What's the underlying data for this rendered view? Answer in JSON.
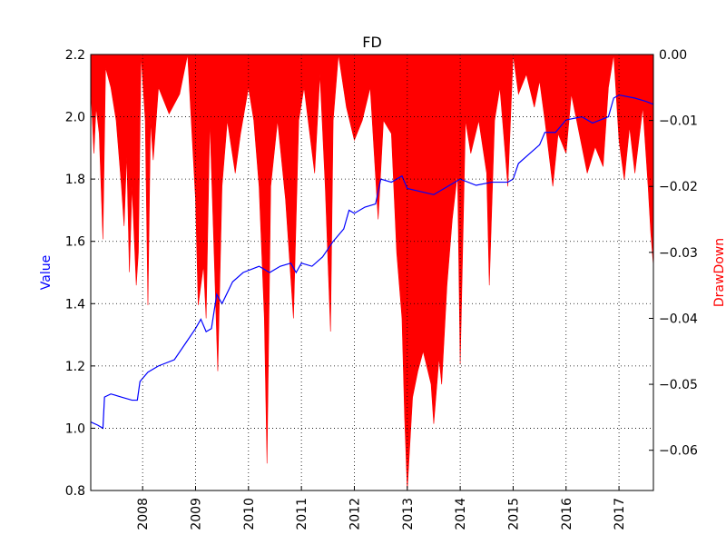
{
  "chart_data": {
    "type": "line",
    "title": "FD",
    "ylabel": "Value",
    "y2label": "DrawDown",
    "grid": true,
    "xlim": [
      2007.02,
      2017.65
    ],
    "xticks": [
      2008,
      2009,
      2010,
      2011,
      2012,
      2013,
      2014,
      2015,
      2016,
      2017
    ],
    "ylim": [
      0.8,
      2.2
    ],
    "yticks": [
      {
        "value": 0.8,
        "label": "0.8"
      },
      {
        "value": 1.0,
        "label": "1.0"
      },
      {
        "value": 1.2,
        "label": "1.2"
      },
      {
        "value": 1.4,
        "label": "1.4"
      },
      {
        "value": 1.6,
        "label": "1.6"
      },
      {
        "value": 1.8,
        "label": "1.8"
      },
      {
        "value": 2.0,
        "label": "2.0"
      },
      {
        "value": 2.2,
        "label": "2.2"
      }
    ],
    "y2lim": [
      -0.0661,
      0
    ],
    "y2ticks": [
      {
        "value": 0,
        "label": "0.00"
      },
      {
        "value": -0.01,
        "label": "−0.01"
      },
      {
        "value": -0.02,
        "label": "−0.02"
      },
      {
        "value": -0.03,
        "label": "−0.03"
      },
      {
        "value": -0.04,
        "label": "−0.04"
      },
      {
        "value": -0.05,
        "label": "−0.05"
      },
      {
        "value": -0.06,
        "label": "−0.06"
      }
    ],
    "series": [
      {
        "color": "#0000ff",
        "x": [
          2007.02,
          2007.15,
          2007.25,
          2007.28,
          2007.4,
          2007.6,
          2007.8,
          2007.9,
          2007.95,
          2008.1,
          2008.3,
          2008.6,
          2008.8,
          2009.0,
          2009.1,
          2009.2,
          2009.3,
          2009.4,
          2009.5,
          2009.7,
          2009.9,
          2010.2,
          2010.4,
          2010.6,
          2010.8,
          2010.9,
          2011.0,
          2011.2,
          2011.4,
          2011.6,
          2011.7,
          2011.8,
          2011.9,
          2012.0,
          2012.2,
          2012.4,
          2012.5,
          2012.7,
          2012.9,
          2013.0,
          2013.5,
          2014.0,
          2014.3,
          2014.6,
          2014.9,
          2015.0,
          2015.1,
          2015.3,
          2015.5,
          2015.6,
          2015.8,
          2016.0,
          2016.3,
          2016.5,
          2016.8,
          2016.9,
          2017.0,
          2017.3,
          2017.5,
          2017.65
        ],
        "values": [
          1.02,
          1.01,
          1.0,
          1.1,
          1.11,
          1.1,
          1.09,
          1.09,
          1.15,
          1.18,
          1.2,
          1.22,
          1.27,
          1.32,
          1.35,
          1.31,
          1.32,
          1.43,
          1.4,
          1.47,
          1.5,
          1.52,
          1.5,
          1.52,
          1.53,
          1.5,
          1.53,
          1.52,
          1.55,
          1.6,
          1.62,
          1.64,
          1.7,
          1.69,
          1.71,
          1.72,
          1.8,
          1.79,
          1.81,
          1.77,
          1.75,
          1.8,
          1.78,
          1.79,
          1.79,
          1.8,
          1.85,
          1.88,
          1.91,
          1.95,
          1.95,
          1.99,
          2.0,
          1.98,
          2.0,
          2.06,
          2.07,
          2.06,
          2.05,
          2.04
        ]
      },
      {
        "color": "#ff0000",
        "axis": "y2",
        "type": "area",
        "x": [
          2007.02,
          2007.08,
          2007.12,
          2007.18,
          2007.25,
          2007.3,
          2007.4,
          2007.5,
          2007.6,
          2007.65,
          2007.7,
          2007.75,
          2007.8,
          2007.88,
          2007.92,
          2007.97,
          2008.05,
          2008.1,
          2008.15,
          2008.2,
          2008.3,
          2008.5,
          2008.7,
          2008.85,
          2009.0,
          2009.05,
          2009.15,
          2009.2,
          2009.27,
          2009.35,
          2009.42,
          2009.5,
          2009.6,
          2009.75,
          2009.85,
          2010.0,
          2010.1,
          2010.2,
          2010.3,
          2010.35,
          2010.42,
          2010.55,
          2010.7,
          2010.85,
          2010.95,
          2011.05,
          2011.25,
          2011.35,
          2011.45,
          2011.55,
          2011.6,
          2011.7,
          2011.85,
          2012.0,
          2012.15,
          2012.3,
          2012.45,
          2012.55,
          2012.7,
          2012.8,
          2012.9,
          2012.95,
          2013.0,
          2013.1,
          2013.2,
          2013.3,
          2013.45,
          2013.5,
          2013.6,
          2013.65,
          2013.75,
          2013.85,
          2013.95,
          2014.0,
          2014.1,
          2014.2,
          2014.35,
          2014.5,
          2014.55,
          2014.65,
          2014.75,
          2014.9,
          2015.0,
          2015.1,
          2015.25,
          2015.4,
          2015.5,
          2015.6,
          2015.75,
          2015.85,
          2016.0,
          2016.1,
          2016.25,
          2016.4,
          2016.55,
          2016.7,
          2016.8,
          2016.9,
          2017.0,
          2017.1,
          2017.2,
          2017.3,
          2017.45,
          2017.55,
          2017.6,
          2017.65
        ],
        "values": [
          -0.005,
          -0.015,
          -0.008,
          -0.012,
          -0.028,
          -0.002,
          -0.005,
          -0.01,
          -0.02,
          -0.026,
          -0.015,
          -0.033,
          -0.02,
          -0.035,
          -0.03,
          0,
          -0.01,
          -0.038,
          -0.01,
          -0.016,
          -0.005,
          -0.009,
          -0.006,
          0,
          -0.022,
          -0.038,
          -0.032,
          -0.04,
          -0.01,
          -0.03,
          -0.048,
          -0.02,
          -0.01,
          -0.018,
          -0.012,
          -0.005,
          -0.01,
          -0.02,
          -0.04,
          -0.062,
          -0.02,
          -0.01,
          -0.022,
          -0.04,
          -0.01,
          -0.005,
          -0.018,
          -0.003,
          -0.02,
          -0.042,
          -0.01,
          0,
          -0.008,
          -0.013,
          -0.01,
          -0.005,
          -0.025,
          -0.01,
          -0.012,
          -0.03,
          -0.04,
          -0.055,
          -0.066,
          -0.052,
          -0.048,
          -0.045,
          -0.05,
          -0.056,
          -0.046,
          -0.05,
          -0.035,
          -0.025,
          -0.018,
          -0.047,
          -0.01,
          -0.015,
          -0.01,
          -0.018,
          -0.035,
          -0.01,
          -0.005,
          -0.02,
          0,
          -0.006,
          -0.003,
          -0.008,
          -0.004,
          -0.01,
          -0.02,
          -0.012,
          -0.015,
          -0.006,
          -0.012,
          -0.018,
          -0.014,
          -0.017,
          -0.005,
          0,
          -0.013,
          -0.019,
          -0.011,
          -0.018,
          -0.008,
          -0.02,
          -0.027,
          -0.032
        ]
      }
    ]
  }
}
